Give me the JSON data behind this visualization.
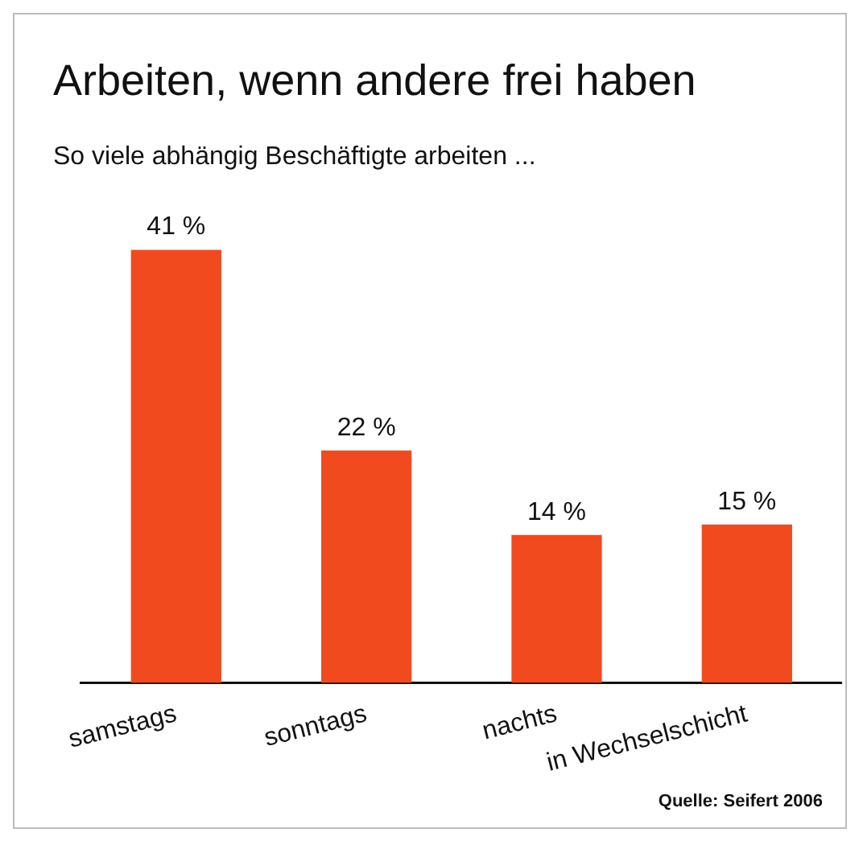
{
  "chart_data": {
    "type": "bar",
    "title": "Arbeiten, wenn andere frei haben",
    "subtitle": "So viele abhängig Beschäftigte arbeiten ...",
    "categories": [
      "samstags",
      "sonntags",
      "nachts",
      "in Wechselschicht"
    ],
    "values": [
      41,
      22,
      14,
      15
    ],
    "color": "#f04a1e",
    "value_labels": [
      "41 %",
      "22 %",
      "14 %",
      "15 %"
    ],
    "annotations": [
      "Quelle: Seifert 2006"
    ]
  }
}
